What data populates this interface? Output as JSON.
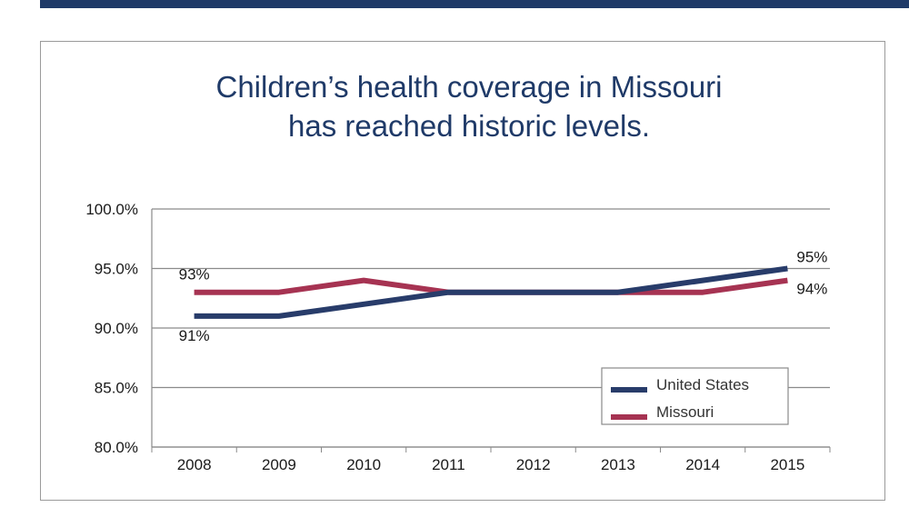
{
  "chart_data": {
    "type": "line",
    "title_lines": [
      "Children’s health coverage in Missouri",
      "has reached historic levels."
    ],
    "xlabel": "",
    "ylabel": "",
    "categories": [
      "2008",
      "2009",
      "2010",
      "2011",
      "2012",
      "2013",
      "2014",
      "2015"
    ],
    "ylim": [
      80,
      100
    ],
    "y_ticks": [
      "100.0%",
      "95.0%",
      "90.0%",
      "85.0%",
      "80.0%"
    ],
    "grid": "horizontal",
    "legend_position": "bottom-right",
    "series": [
      {
        "name": "United States",
        "color": "#283c6a",
        "values": [
          91,
          91,
          92,
          93,
          93,
          93,
          94,
          95
        ]
      },
      {
        "name": "Missouri",
        "color": "#a63352",
        "values": [
          93,
          93,
          94,
          93,
          93,
          93,
          93,
          94
        ]
      }
    ],
    "data_labels": [
      {
        "text": "93%",
        "series": "Missouri",
        "index": 0,
        "pos": "above"
      },
      {
        "text": "91%",
        "series": "United States",
        "index": 0,
        "pos": "below"
      },
      {
        "text": "95%",
        "series": "United States",
        "index": 7,
        "pos": "above"
      },
      {
        "text": "94%",
        "series": "Missouri",
        "index": 7,
        "pos": "below"
      }
    ]
  }
}
